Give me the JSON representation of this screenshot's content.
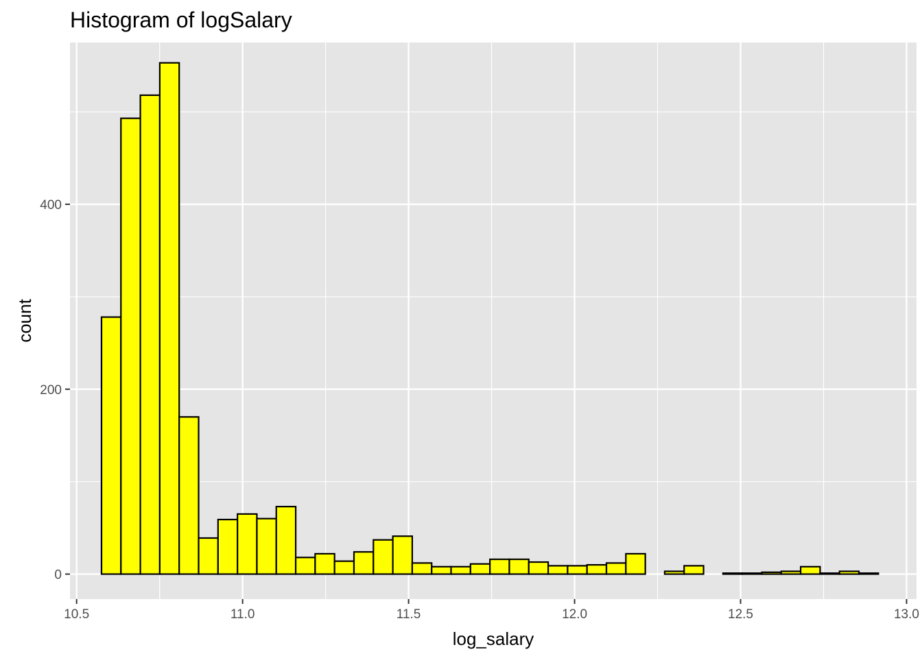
{
  "chart_data": {
    "type": "bar",
    "title": "Histogram of logSalary",
    "xlabel": "log_salary",
    "ylabel": "count",
    "xlim": [
      10.48,
      13.03
    ],
    "ylim": [
      -27,
      575
    ],
    "x_ticks": [
      10.5,
      11.0,
      11.5,
      12.0,
      12.5,
      13.0
    ],
    "x_tick_labels": [
      "10.5",
      "11.0",
      "11.5",
      "12.0",
      "12.5",
      "13.0"
    ],
    "y_ticks": [
      0,
      200,
      400
    ],
    "y_tick_labels": [
      "0",
      "200",
      "400"
    ],
    "grid": true,
    "bin_start": 10.575,
    "bin_width": 0.0585,
    "counts": [
      278,
      493,
      518,
      553,
      170,
      39,
      59,
      65,
      60,
      73,
      18,
      22,
      14,
      24,
      37,
      41,
      12,
      8,
      8,
      11,
      16,
      16,
      13,
      9,
      9,
      10,
      12,
      22,
      0,
      3,
      9,
      0,
      1,
      1,
      2,
      3,
      8,
      1,
      3,
      1
    ],
    "colors": {
      "fill": "#ffff00",
      "outline": "#000000",
      "panel": "#e5e5e5",
      "grid": "#ffffff"
    }
  }
}
